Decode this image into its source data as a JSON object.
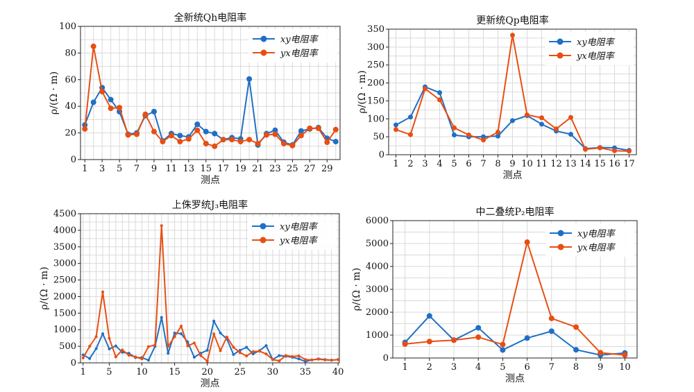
{
  "colors": {
    "xy": "#1f6fc5",
    "yx": "#e84e12",
    "grid": "#d9d9d9"
  },
  "chart_data": [
    {
      "type": "line",
      "title": "全新统Qh电阻率",
      "xlabel": "测点",
      "ylabel": "ρ/(Ω · m)",
      "x": [
        1,
        2,
        3,
        4,
        5,
        6,
        7,
        8,
        9,
        10,
        11,
        12,
        13,
        14,
        15,
        16,
        17,
        18,
        19,
        20,
        21,
        22,
        23,
        24,
        25,
        26,
        27,
        28,
        29,
        30
      ],
      "xticks": [
        1,
        3,
        5,
        7,
        9,
        11,
        13,
        15,
        17,
        19,
        21,
        23,
        25,
        27,
        29
      ],
      "xlim": [
        0.5,
        30.5
      ],
      "ylim": [
        0,
        100
      ],
      "yticks": [
        0,
        20,
        40,
        60,
        80,
        100
      ],
      "grid": true,
      "legend": "top-right",
      "series": [
        {
          "name": "xy电阻率",
          "values": [
            26,
            43,
            54,
            45,
            36,
            19,
            20,
            33,
            36,
            14,
            19.5,
            18,
            17,
            26.5,
            21,
            19.5,
            15,
            16.5,
            15.5,
            60.5,
            11,
            19.5,
            22,
            13,
            11,
            21.5,
            23,
            24,
            16,
            13.5
          ]
        },
        {
          "name": "yx电阻率",
          "values": [
            23,
            85,
            51,
            38.5,
            39,
            18.5,
            19,
            34,
            21,
            13.5,
            18,
            13.5,
            15.5,
            22,
            12,
            10,
            15,
            15,
            13.5,
            15,
            12,
            18.5,
            19,
            12,
            10.5,
            18,
            23.5,
            23.5,
            13,
            22.5
          ]
        }
      ]
    },
    {
      "type": "line",
      "title": "更新统Qp电阻率",
      "xlabel": "测点",
      "ylabel": "ρ/(Ω · m)",
      "x": [
        1,
        2,
        3,
        4,
        5,
        6,
        7,
        8,
        9,
        10,
        11,
        12,
        13,
        14,
        15,
        16,
        17
      ],
      "xticks": [
        1,
        2,
        3,
        4,
        5,
        6,
        7,
        8,
        9,
        10,
        11,
        12,
        13,
        14,
        15,
        16,
        17
      ],
      "xlim": [
        0.5,
        17.5
      ],
      "ylim": [
        0,
        350
      ],
      "yticks": [
        0,
        50,
        100,
        150,
        200,
        250,
        300,
        350
      ],
      "grid": true,
      "legend": "top-right",
      "series": [
        {
          "name": "xy电阻率",
          "values": [
            83,
            105,
            189,
            173,
            55,
            50,
            50,
            52,
            95,
            109,
            85,
            66,
            57,
            17,
            20,
            19,
            12
          ]
        },
        {
          "name": "yx电阻率",
          "values": [
            70,
            56,
            184,
            153,
            75,
            55,
            41,
            63,
            333,
            111,
            103,
            72,
            104,
            15,
            19,
            11,
            10
          ]
        }
      ]
    },
    {
      "type": "line",
      "title": "上侏罗统J₃电阻率",
      "xlabel": "测点",
      "ylabel": "ρ/(Ω · m)",
      "x": [
        1,
        2,
        3,
        4,
        5,
        6,
        7,
        8,
        9,
        10,
        11,
        12,
        13,
        14,
        15,
        16,
        17,
        18,
        19,
        20,
        21,
        22,
        23,
        24,
        25,
        26,
        27,
        28,
        29,
        30,
        31,
        32,
        33,
        34,
        35,
        36,
        37,
        38,
        39,
        40
      ],
      "xticks": [
        1,
        5,
        10,
        15,
        20,
        25,
        30,
        35,
        40
      ],
      "xlim": [
        0.6,
        40.2
      ],
      "ylim": [
        0,
        4500
      ],
      "yticks": [
        0,
        500,
        1000,
        1500,
        2000,
        2500,
        3000,
        3500,
        4000,
        4500
      ],
      "grid": true,
      "legend": "top-right",
      "series": [
        {
          "name": "xy电阻率",
          "values": [
            240,
            130,
            430,
            880,
            420,
            510,
            320,
            290,
            160,
            160,
            80,
            500,
            1370,
            290,
            900,
            880,
            630,
            170,
            290,
            380,
            1260,
            900,
            720,
            250,
            380,
            470,
            270,
            370,
            520,
            100,
            220,
            200,
            170,
            120,
            40,
            90,
            120,
            100,
            80,
            100
          ]
        },
        {
          "name": "yx电阻率",
          "values": [
            150,
            500,
            790,
            2140,
            740,
            180,
            390,
            230,
            180,
            120,
            490,
            540,
            4140,
            500,
            790,
            1110,
            510,
            600,
            220,
            50,
            870,
            370,
            780,
            470,
            310,
            210,
            340,
            350,
            270,
            100,
            60,
            220,
            190,
            210,
            100,
            90,
            110,
            90,
            80,
            100
          ]
        }
      ]
    },
    {
      "type": "line",
      "title": "中二叠统P₂电阻率",
      "xlabel": "测点",
      "ylabel": "ρ/(Ω · m)",
      "x": [
        1,
        2,
        3,
        4,
        5,
        6,
        7,
        8,
        9,
        10
      ],
      "xticks": [
        1,
        2,
        3,
        4,
        5,
        6,
        7,
        8,
        9,
        10
      ],
      "xlim": [
        0.5,
        10.5
      ],
      "ylim": [
        0,
        6000
      ],
      "yticks": [
        0,
        1000,
        2000,
        3000,
        4000,
        5000,
        6000
      ],
      "grid": true,
      "legend": "top-right",
      "series": [
        {
          "name": "xy电阻率",
          "values": [
            680,
            1840,
            780,
            1320,
            350,
            870,
            1170,
            360,
            130,
            220
          ]
        },
        {
          "name": "yx电阻率",
          "values": [
            610,
            720,
            780,
            910,
            590,
            5060,
            1730,
            1350,
            230,
            130
          ]
        }
      ]
    }
  ]
}
